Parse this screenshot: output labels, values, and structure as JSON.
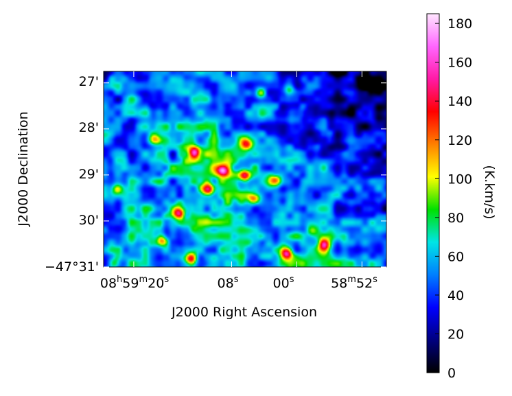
{
  "chart_data": {
    "type": "heatmap",
    "title": "",
    "xlabel": "J2000 Right Ascension",
    "ylabel": "J2000 Declination",
    "x_ticks": [
      {
        "h": "08",
        "m": "59",
        "s": "20",
        "ra_sec": 20
      },
      {
        "s": "08",
        "ra_sec": 8
      },
      {
        "s": "00",
        "ra_sec": 0
      },
      {
        "m": "58",
        "s": "52",
        "ra_sec": -8
      }
    ],
    "y_ticks": [
      {
        "label": "27'",
        "arcmin": 27
      },
      {
        "label": "28'",
        "arcmin": 28
      },
      {
        "label": "29'",
        "arcmin": 29
      },
      {
        "label": "30'",
        "arcmin": 30
      },
      {
        "label": "−47°31'",
        "arcmin": 31
      }
    ],
    "xlim_ra_sec": [
      23.7,
      -11
    ],
    "ylim_arcmin": [
      31,
      26.75
    ],
    "colorbar": {
      "label": "(K.km/s)",
      "range": [
        0,
        185
      ],
      "ticks": [
        "0",
        "20",
        "40",
        "60",
        "80",
        "100",
        "120",
        "140",
        "160",
        "180"
      ],
      "colormap": [
        "#000000",
        "#00007f",
        "#0000ff",
        "#007fff",
        "#00e5e5",
        "#00e000",
        "#ffff00",
        "#ff8000",
        "#ff0000",
        "#ff1aa6",
        "#ff66ff",
        "#ffe6ff"
      ]
    },
    "emission_peaks": [
      {
        "ra_sec": 12.6,
        "arcmin": 28.5,
        "value": 150
      },
      {
        "ra_sec": 11.0,
        "arcmin": 29.3,
        "value": 170
      },
      {
        "ra_sec": 9.2,
        "arcmin": 28.9,
        "value": 160
      },
      {
        "ra_sec": 6.5,
        "arcmin": 29.0,
        "value": 150
      },
      {
        "ra_sec": 5.3,
        "arcmin": 29.5,
        "value": 140
      },
      {
        "ra_sec": 6.2,
        "arcmin": 28.3,
        "value": 130
      },
      {
        "ra_sec": 2.7,
        "arcmin": 29.1,
        "value": 125
      },
      {
        "ra_sec": 14.6,
        "arcmin": 29.8,
        "value": 140
      },
      {
        "ra_sec": 1.3,
        "arcmin": 30.7,
        "value": 160
      },
      {
        "ra_sec": -3.3,
        "arcmin": 30.5,
        "value": 130
      },
      {
        "ra_sec": 13.1,
        "arcmin": 30.8,
        "value": 150
      },
      {
        "ra_sec": 16.6,
        "arcmin": 30.4,
        "value": 110
      },
      {
        "ra_sec": 22.4,
        "arcmin": 30.9,
        "value": 80
      },
      {
        "ra_sec": 22.1,
        "arcmin": 29.3,
        "value": 80
      },
      {
        "ra_sec": 4.6,
        "arcmin": 27.2,
        "value": 90
      },
      {
        "ra_sec": 1.0,
        "arcmin": 27.1,
        "value": 80
      },
      {
        "ra_sec": 17.7,
        "arcmin": 28.2,
        "value": 90
      },
      {
        "ra_sec": -1.8,
        "arcmin": 30.2,
        "value": 80
      }
    ]
  }
}
